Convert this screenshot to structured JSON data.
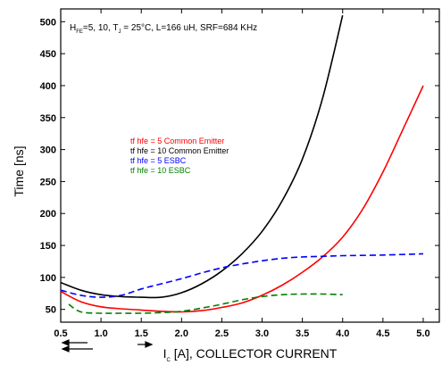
{
  "chart_data": {
    "type": "line",
    "xlabel_prefix": "I",
    "xlabel_sub": "C",
    "xlabel_rest": " [A], COLLECTOR CURRENT",
    "ylabel": "Time [ns]",
    "xlim": [
      0.5,
      5.2
    ],
    "ylim": [
      30,
      520
    ],
    "x_ticks": [
      "0.5",
      "1.0",
      "1.5",
      "2.0",
      "2.5",
      "3.0",
      "3.5",
      "4.0",
      "4.5",
      "5.0"
    ],
    "y_ticks": [
      "50",
      "100",
      "150",
      "200",
      "250",
      "300",
      "350",
      "400",
      "450",
      "500"
    ],
    "conditions": {
      "h": "H",
      "h_sub": "FE",
      "part1": "=5, 10, T",
      "t_sub": "J",
      "part2": " = 25°C, L=166 uH, SRF=684 KHz"
    },
    "series": [
      {
        "name": "tf hfe = 5 Common Emitter",
        "color": "#ff0000",
        "dash": "solid",
        "points": [
          [
            0.5,
            78
          ],
          [
            0.75,
            62
          ],
          [
            1.0,
            54
          ],
          [
            1.25,
            51
          ],
          [
            1.5,
            49
          ],
          [
            1.75,
            47
          ],
          [
            2.0,
            46
          ],
          [
            2.25,
            48
          ],
          [
            2.5,
            53
          ],
          [
            2.75,
            60
          ],
          [
            3.0,
            72
          ],
          [
            3.25,
            88
          ],
          [
            3.5,
            108
          ],
          [
            3.75,
            132
          ],
          [
            4.0,
            163
          ],
          [
            4.25,
            207
          ],
          [
            4.5,
            265
          ],
          [
            4.75,
            332
          ],
          [
            5.0,
            400
          ]
        ]
      },
      {
        "name": "tf hfe = 10 Common Emitter",
        "color": "#000000",
        "dash": "solid",
        "points": [
          [
            0.5,
            92
          ],
          [
            0.75,
            80
          ],
          [
            1.0,
            73
          ],
          [
            1.25,
            70
          ],
          [
            1.5,
            69
          ],
          [
            1.75,
            69
          ],
          [
            2.0,
            76
          ],
          [
            2.25,
            90
          ],
          [
            2.5,
            110
          ],
          [
            2.75,
            137
          ],
          [
            3.0,
            172
          ],
          [
            3.25,
            220
          ],
          [
            3.5,
            285
          ],
          [
            3.75,
            380
          ],
          [
            4.0,
            510
          ]
        ]
      },
      {
        "name": "tf hfe = 5 ESBC",
        "color": "#0000ff",
        "dash": "dashed",
        "points": [
          [
            0.5,
            80
          ],
          [
            0.75,
            72
          ],
          [
            1.0,
            69
          ],
          [
            1.25,
            72
          ],
          [
            1.5,
            82
          ],
          [
            1.75,
            90
          ],
          [
            2.0,
            98
          ],
          [
            2.25,
            107
          ],
          [
            2.5,
            115
          ],
          [
            2.75,
            121
          ],
          [
            3.0,
            126
          ],
          [
            3.25,
            130
          ],
          [
            3.5,
            132
          ],
          [
            3.75,
            133
          ],
          [
            4.0,
            134
          ],
          [
            4.5,
            135
          ],
          [
            5.0,
            137
          ]
        ]
      },
      {
        "name": "tf hfe = 10 ESBC",
        "color": "#008000",
        "dash": "dashed",
        "points": [
          [
            0.6,
            58
          ],
          [
            0.75,
            46
          ],
          [
            1.0,
            44
          ],
          [
            1.25,
            44
          ],
          [
            1.5,
            44
          ],
          [
            1.75,
            45
          ],
          [
            2.0,
            47
          ],
          [
            2.25,
            52
          ],
          [
            2.5,
            58
          ],
          [
            2.75,
            65
          ],
          [
            3.0,
            70
          ],
          [
            3.25,
            73
          ],
          [
            3.5,
            74
          ],
          [
            3.75,
            74
          ],
          [
            4.0,
            73
          ]
        ]
      }
    ],
    "grid": false,
    "legend_placement": "center-left"
  }
}
